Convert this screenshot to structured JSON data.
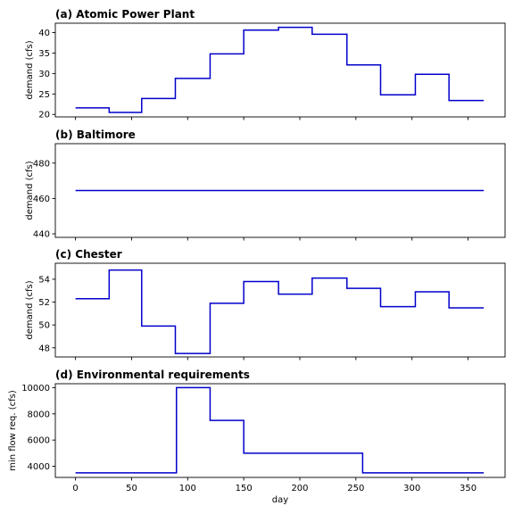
{
  "colors": {
    "line": "#0000cc"
  },
  "xlabel": "day",
  "chart_data": [
    {
      "type": "line",
      "title": "(a) Atomic Power Plant",
      "xlabel": "",
      "ylabel": "demand (cfs)",
      "xlim": [
        -18,
        383
      ],
      "ylim": [
        19.4,
        42.3
      ],
      "xticks": [
        0,
        50,
        100,
        150,
        200,
        250,
        300,
        350
      ],
      "yticks": [
        20,
        25,
        30,
        35,
        40
      ],
      "show_xtick_labels": false,
      "step_mode": "post",
      "series": [
        {
          "x": [
            0,
            30,
            59,
            89,
            120,
            150,
            181,
            211,
            242,
            272,
            303,
            333,
            364
          ],
          "y": [
            21.6,
            20.5,
            23.9,
            28.8,
            34.8,
            40.6,
            41.3,
            39.6,
            32.1,
            24.8,
            29.8,
            23.4,
            23.4
          ]
        }
      ]
    },
    {
      "type": "line",
      "title": "(b) Baltimore",
      "xlabel": "",
      "ylabel": "demand (cfs)",
      "xlim": [
        -18,
        383
      ],
      "ylim": [
        438,
        491
      ],
      "xticks": [
        0,
        50,
        100,
        150,
        200,
        250,
        300,
        350
      ],
      "yticks": [
        440,
        460,
        480
      ],
      "show_xtick_labels": false,
      "step_mode": "post",
      "series": [
        {
          "x": [
            0,
            364
          ],
          "y": [
            464.5,
            464.5
          ]
        }
      ]
    },
    {
      "type": "line",
      "title": "(c) Chester",
      "xlabel": "",
      "ylabel": "demand (cfs)",
      "xlim": [
        -18,
        383
      ],
      "ylim": [
        47.2,
        55.4
      ],
      "xticks": [
        0,
        50,
        100,
        150,
        200,
        250,
        300,
        350
      ],
      "yticks": [
        48,
        50,
        52,
        54
      ],
      "show_xtick_labels": false,
      "step_mode": "post",
      "series": [
        {
          "x": [
            0,
            30,
            59,
            89,
            120,
            150,
            181,
            211,
            242,
            272,
            303,
            333,
            364
          ],
          "y": [
            52.3,
            54.8,
            49.9,
            47.5,
            51.9,
            53.8,
            52.7,
            54.1,
            53.2,
            51.6,
            52.9,
            51.5,
            51.5
          ]
        }
      ]
    },
    {
      "type": "line",
      "title": "(d) Environmental requirements",
      "xlabel": "day",
      "ylabel": "min flow req. (cfs)",
      "xlim": [
        -18,
        383
      ],
      "ylim": [
        3150,
        10300
      ],
      "xticks": [
        0,
        50,
        100,
        150,
        200,
        250,
        300,
        350
      ],
      "yticks": [
        4000,
        6000,
        8000,
        10000
      ],
      "show_xtick_labels": true,
      "step_mode": "post",
      "series": [
        {
          "x": [
            0,
            90,
            120,
            150,
            256,
            364
          ],
          "y": [
            3500,
            10000,
            7500,
            5000,
            3500,
            3500
          ]
        }
      ]
    }
  ]
}
